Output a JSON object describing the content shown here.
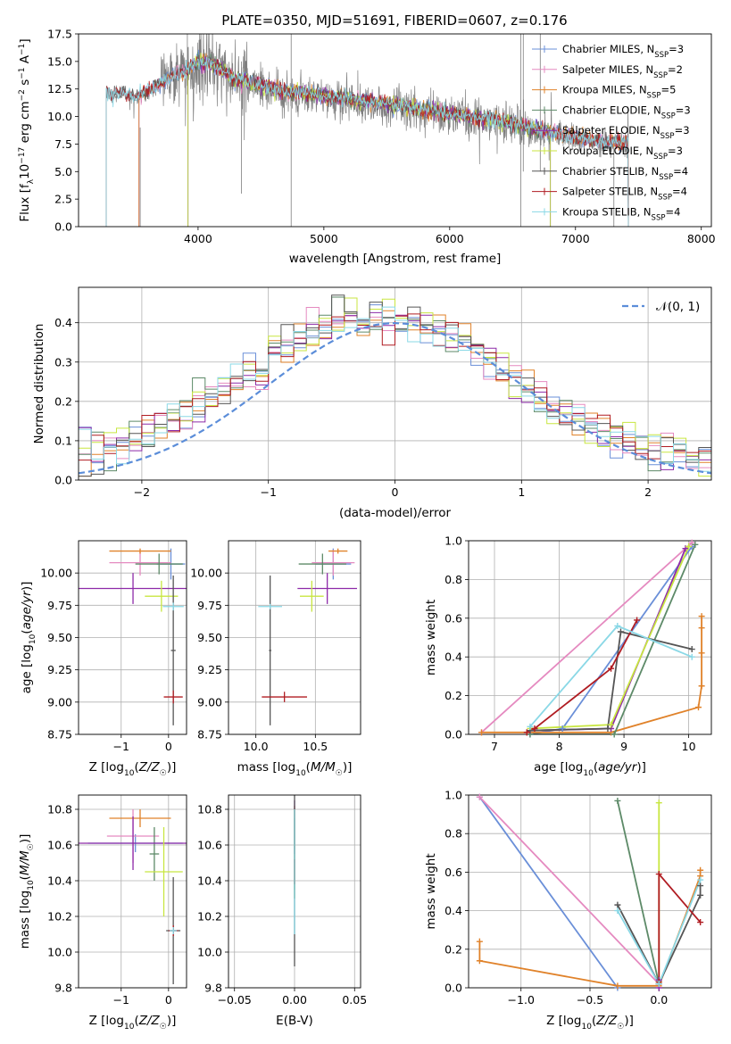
{
  "title": "PLATE=0350, MJD=51691, FIBERID=0607, z=0.176",
  "colors": [
    "#6a8fd8",
    "#e58ac0",
    "#e0822a",
    "#5d8a68",
    "#8d2aa8",
    "#c8e640",
    "#555555",
    "#b01c22",
    "#8ad8e6"
  ],
  "model_labels": [
    "Chabrier MILES, N_SSP=3",
    "Salpeter MILES, N_SSP=2",
    "Kroupa MILES, N_SSP=5",
    "Chabrier ELODIE, N_SSP=3",
    "Salpeter ELODIE, N_SSP=3",
    "Kroupa ELODIE, N_SSP=3",
    "Chabrier STELIB, N_SSP=4",
    "Salpeter STELIB, N_SSP=4",
    "Kroupa STELIB, N_SSP=4"
  ],
  "legend_text": [
    [
      "Chabrier MILES, N",
      "SSP",
      "=3"
    ],
    [
      "Salpeter MILES, N",
      "SSP",
      "=2"
    ],
    [
      "Kroupa MILES, N",
      "SSP",
      "=5"
    ],
    [
      "Chabrier ELODIE, N",
      "SSP",
      "=3"
    ],
    [
      "Salpeter ELODIE, N",
      "SSP",
      "=3"
    ],
    [
      "Kroupa ELODIE, N",
      "SSP",
      "=3"
    ],
    [
      "Chabrier STELIB, N",
      "SSP",
      "=4"
    ],
    [
      "Salpeter STELIB, N",
      "SSP",
      "=4"
    ],
    [
      "Kroupa STELIB, N",
      "SSP",
      "=4"
    ]
  ],
  "gauss_label": "𝒩(0, 1)",
  "chart_data": [
    {
      "id": "spectrum",
      "type": "line",
      "xlabel": "wavelength [Angstrom, rest frame]",
      "ylabel": "Flux [f_λ 10^-17 erg cm^-2 s^-1 A^-1]",
      "xlim": [
        3050,
        8080
      ],
      "ylim": [
        0,
        17.5
      ],
      "xticks": [
        4000,
        5000,
        6000,
        7000,
        8000
      ],
      "yticks": [
        0.0,
        2.5,
        5.0,
        7.5,
        10.0,
        12.5,
        15.0,
        17.5
      ],
      "observed_color": "#7f7f7f",
      "observed_anchors": [
        [
          3270,
          11.9
        ],
        [
          3400,
          12.0
        ],
        [
          3500,
          11.6
        ],
        [
          3600,
          12.2
        ],
        [
          3700,
          12.8
        ],
        [
          3800,
          13.6
        ],
        [
          3900,
          14.0
        ],
        [
          4000,
          14.8
        ],
        [
          4100,
          14.7
        ],
        [
          4200,
          14.0
        ],
        [
          4300,
          13.2
        ],
        [
          4500,
          12.7
        ],
        [
          4700,
          12.1
        ],
        [
          5000,
          11.7
        ],
        [
          5500,
          11.0
        ],
        [
          6000,
          10.1
        ],
        [
          6500,
          9.2
        ],
        [
          6700,
          8.6
        ],
        [
          7000,
          8.0
        ],
        [
          7200,
          7.6
        ],
        [
          7420,
          7.4
        ]
      ],
      "model_x_ranges": [
        [
          3530,
          7420
        ],
        [
          3530,
          7420
        ],
        [
          3530,
          7420
        ],
        [
          3920,
          6800
        ],
        [
          3920,
          6800
        ],
        [
          3920,
          6800
        ],
        [
          3270,
          7420
        ],
        [
          3270,
          7420
        ],
        [
          3270,
          7420
        ]
      ]
    },
    {
      "id": "residuals",
      "type": "histogram",
      "xlabel": "(data-model)/error",
      "ylabel": "Normed distribution",
      "xlim": [
        -2.5,
        2.5
      ],
      "ylim": [
        0,
        0.49
      ],
      "xticks": [
        -2,
        -1,
        0,
        1,
        2
      ],
      "yticks": [
        0.0,
        0.1,
        0.2,
        0.3,
        0.4
      ],
      "bins": 50,
      "reference_curve": "N(0,1) gaussian, dashed"
    },
    {
      "id": "age_vs_Z",
      "type": "scatter",
      "xlabel": "Z [log10(Z/Z☉)]",
      "ylabel": "age  [log10(age/yr)]",
      "xlim": [
        -1.9,
        0.38
      ],
      "ylim": [
        8.75,
        10.25
      ],
      "xticks": [
        -1,
        0
      ],
      "yticks": [
        8.75,
        9.0,
        9.25,
        9.5,
        9.75,
        10.0
      ],
      "points": [
        {
          "model": 0,
          "x": 0.05,
          "y": 10.07,
          "xerr": 0.3,
          "yerr": 0.12
        },
        {
          "model": 1,
          "x": -0.6,
          "y": 10.08,
          "xerr": 0.65,
          "yerr": 0.1
        },
        {
          "model": 2,
          "x": -0.6,
          "y": 10.17,
          "xerr": 0.65,
          "yerr": 0.02
        },
        {
          "model": 3,
          "x": -0.2,
          "y": 10.07,
          "xerr": 0.5,
          "yerr": 0.08
        },
        {
          "model": 4,
          "x": -0.75,
          "y": 9.88,
          "xerr": 1.25,
          "yerr": 0.12
        },
        {
          "model": 5,
          "x": -0.15,
          "y": 9.82,
          "xerr": 0.35,
          "yerr": 0.12
        },
        {
          "model": 6,
          "x": 0.1,
          "y": 9.4,
          "xerr": 0.05,
          "yerr": 0.58
        },
        {
          "model": 7,
          "x": 0.1,
          "y": 9.04,
          "xerr": 0.2,
          "yerr": 0.05
        },
        {
          "model": 8,
          "x": 0.1,
          "y": 9.74,
          "xerr": 0.22,
          "yerr": 0.03
        }
      ]
    },
    {
      "id": "age_vs_mass",
      "type": "scatter",
      "xlabel": "mass [log10(M/M☉)]",
      "ylabel": "",
      "xlim": [
        9.77,
        10.88
      ],
      "ylim": [
        8.75,
        10.25
      ],
      "xticks": [
        10.0,
        10.5
      ],
      "yticks": [
        8.75,
        9.0,
        9.25,
        9.5,
        9.75,
        10.0
      ],
      "points": [
        {
          "model": 0,
          "x": 10.65,
          "y": 10.07,
          "xerr": 0.15,
          "yerr": 0.12
        },
        {
          "model": 1,
          "x": 10.65,
          "y": 10.08,
          "xerr": 0.18,
          "yerr": 0.1
        },
        {
          "model": 2,
          "x": 10.69,
          "y": 10.17,
          "xerr": 0.08,
          "yerr": 0.02
        },
        {
          "model": 3,
          "x": 10.56,
          "y": 10.07,
          "xerr": 0.2,
          "yerr": 0.08
        },
        {
          "model": 4,
          "x": 10.6,
          "y": 9.88,
          "xerr": 0.25,
          "yerr": 0.12
        },
        {
          "model": 5,
          "x": 10.47,
          "y": 9.82,
          "xerr": 0.1,
          "yerr": 0.12
        },
        {
          "model": 6,
          "x": 10.12,
          "y": 9.4,
          "xerr": 0.01,
          "yerr": 0.58
        },
        {
          "model": 7,
          "x": 10.24,
          "y": 9.04,
          "xerr": 0.19,
          "yerr": 0.04
        },
        {
          "model": 8,
          "x": 10.12,
          "y": 9.74,
          "xerr": 0.1,
          "yerr": 0.02
        }
      ]
    },
    {
      "id": "massweight_vs_age",
      "type": "line",
      "xlabel": "age  [log10(age/yr)]",
      "ylabel": "mass weight",
      "xlim": [
        6.6,
        10.35
      ],
      "ylim": [
        0,
        1
      ],
      "xticks": [
        7,
        8,
        9,
        10
      ],
      "yticks": [
        0.0,
        0.2,
        0.4,
        0.6,
        0.8,
        1.0
      ],
      "series": [
        {
          "model": 0,
          "x": [
            7.55,
            8.05,
            10.05
          ],
          "y": [
            0.0,
            0.03,
            0.97
          ]
        },
        {
          "model": 1,
          "x": [
            6.8,
            10.05
          ],
          "y": [
            0.01,
            0.99
          ]
        },
        {
          "model": 2,
          "x": [
            6.8,
            7.5,
            8.8,
            10.15,
            10.2,
            10.2,
            10.2,
            10.2
          ],
          "y": [
            0.01,
            0.01,
            0.01,
            0.14,
            0.25,
            0.42,
            0.55,
            0.61
          ]
        },
        {
          "model": 3,
          "x": [
            7.55,
            8.85,
            10.1
          ],
          "y": [
            0.0,
            0.0,
            0.98
          ]
        },
        {
          "model": 4,
          "x": [
            7.55,
            8.8,
            9.95
          ],
          "y": [
            0.02,
            0.03,
            0.96
          ]
        },
        {
          "model": 5,
          "x": [
            7.55,
            8.8,
            10.0
          ],
          "y": [
            0.03,
            0.05,
            0.97
          ]
        },
        {
          "model": 6,
          "x": [
            7.55,
            8.75,
            8.95,
            10.05
          ],
          "y": [
            0.02,
            0.03,
            0.53,
            0.44
          ]
        },
        {
          "model": 7,
          "x": [
            7.5,
            7.62,
            8.8,
            9.2
          ],
          "y": [
            0.01,
            0.03,
            0.34,
            0.59
          ]
        },
        {
          "model": 8,
          "x": [
            7.55,
            8.9,
            10.05
          ],
          "y": [
            0.04,
            0.56,
            0.4
          ]
        }
      ]
    },
    {
      "id": "mass_vs_Z",
      "type": "scatter",
      "xlabel": "Z [log10(Z/Z☉)]",
      "ylabel": "mass [log10(M/M☉)]",
      "xlim": [
        -1.9,
        0.38
      ],
      "ylim": [
        9.8,
        10.88
      ],
      "xticks": [
        -1,
        0
      ],
      "yticks": [
        9.8,
        10.0,
        10.2,
        10.4,
        10.6,
        10.8
      ],
      "points": [
        {
          "model": 0,
          "x": -0.7,
          "y": 10.61,
          "xerr": 1.0,
          "yerr": 0.05
        },
        {
          "model": 1,
          "x": -0.75,
          "y": 10.65,
          "xerr": 0.55,
          "yerr": 0.15
        },
        {
          "model": 2,
          "x": -0.6,
          "y": 10.75,
          "xerr": 0.65,
          "yerr": 0.05
        },
        {
          "model": 3,
          "x": -0.3,
          "y": 10.55,
          "xerr": 0.1,
          "yerr": 0.15
        },
        {
          "model": 4,
          "x": -0.75,
          "y": 10.61,
          "xerr": 1.25,
          "yerr": 0.15
        },
        {
          "model": 5,
          "x": -0.1,
          "y": 10.45,
          "xerr": 0.4,
          "yerr": 0.25
        },
        {
          "model": 6,
          "x": 0.1,
          "y": 10.12,
          "xerr": 0.15,
          "yerr": 0.3
        },
        {
          "model": 7,
          "x": 0.1,
          "y": 10.12,
          "xerr": 0.1,
          "yerr": 0.03
        },
        {
          "model": 8,
          "x": 0.1,
          "y": 10.12,
          "xerr": 0.08,
          "yerr": 0.02
        }
      ]
    },
    {
      "id": "mass_vs_ebv",
      "type": "scatter",
      "xlabel": "E(B-V)",
      "ylabel": "",
      "xlim": [
        -0.055,
        0.055
      ],
      "ylim": [
        9.8,
        10.88
      ],
      "xticks": [
        -0.05,
        0.0,
        0.05
      ],
      "yticks": [
        9.8,
        10.0,
        10.2,
        10.4,
        10.6,
        10.8
      ],
      "points": [
        {
          "model": 0,
          "x": 0.0,
          "y": 10.55,
          "xerr": 0.0,
          "yerr": 0.25
        },
        {
          "model": 1,
          "x": 0.0,
          "y": 10.65,
          "xerr": 0.0,
          "yerr": 0.15
        },
        {
          "model": 2,
          "x": 0.0,
          "y": 10.7,
          "xerr": 0.0,
          "yerr": 0.12
        },
        {
          "model": 3,
          "x": 0.0,
          "y": 10.55,
          "xerr": 0.0,
          "yerr": 0.2
        },
        {
          "model": 4,
          "x": 0.0,
          "y": 10.7,
          "xerr": 0.0,
          "yerr": 0.15
        },
        {
          "model": 5,
          "x": 0.0,
          "y": 10.55,
          "xerr": 0.0,
          "yerr": 0.25
        },
        {
          "model": 6,
          "x": 0.0,
          "y": 10.4,
          "xerr": 0.0,
          "yerr": 0.48
        },
        {
          "model": 7,
          "x": 0.0,
          "y": 10.45,
          "xerr": 0.0,
          "yerr": 0.07
        },
        {
          "model": 8,
          "x": 0.0,
          "y": 10.45,
          "xerr": 0.0,
          "yerr": 0.35
        }
      ]
    },
    {
      "id": "massweight_vs_Z",
      "type": "line",
      "xlabel": "Z [log10(Z/Z☉)]",
      "ylabel": "mass weight",
      "xlim": [
        -1.38,
        0.38
      ],
      "ylim": [
        0,
        1
      ],
      "xticks": [
        -1.0,
        -0.5,
        0.0
      ],
      "yticks": [
        0.0,
        0.2,
        0.4,
        0.6,
        0.8,
        1.0
      ],
      "series": [
        {
          "model": 0,
          "x": [
            -1.3,
            -0.3
          ],
          "y": [
            0.99,
            0.0
          ]
        },
        {
          "model": 1,
          "x": [
            -1.3,
            0.0
          ],
          "y": [
            0.99,
            0.02
          ]
        },
        {
          "model": 2,
          "x": [
            -1.3,
            -1.3,
            -0.3,
            0.0,
            0.3,
            0.3
          ],
          "y": [
            0.24,
            0.14,
            0.01,
            0.01,
            0.58,
            0.61
          ]
        },
        {
          "model": 3,
          "x": [
            -0.3,
            0.0
          ],
          "y": [
            0.97,
            0.02
          ]
        },
        {
          "model": 4,
          "x": [
            0.0,
            0.0
          ],
          "y": [
            0.0,
            0.04
          ]
        },
        {
          "model": 5,
          "x": [
            0.0,
            0.0
          ],
          "y": [
            0.96,
            0.03
          ]
        },
        {
          "model": 6,
          "x": [
            -0.3,
            0.0,
            0.3,
            0.3
          ],
          "y": [
            0.43,
            0.02,
            0.48,
            0.53
          ]
        },
        {
          "model": 7,
          "x": [
            0.0,
            0.0,
            0.3
          ],
          "y": [
            0.03,
            0.59,
            0.34
          ]
        },
        {
          "model": 8,
          "x": [
            -0.3,
            0.0,
            0.3
          ],
          "y": [
            0.4,
            0.02,
            0.56
          ]
        }
      ]
    }
  ]
}
